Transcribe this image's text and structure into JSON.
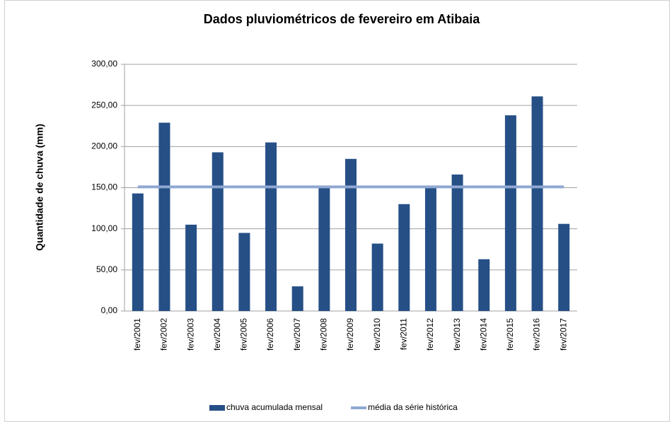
{
  "chart_data": {
    "type": "bar",
    "title": "Dados pluviométricos de fevereiro em Atibaia",
    "y_label": "Quantidade de chuva (mm)",
    "categories": [
      "fev/2001",
      "fev/2002",
      "fev/2003",
      "fev/2004",
      "fev/2005",
      "fev/2006",
      "fev/2007",
      "fev/2008",
      "fev/2009",
      "fev/2010",
      "fev/2011",
      "fev/2012",
      "fev/2013",
      "fev/2014",
      "fev/2015",
      "fev/2016",
      "fev/2017"
    ],
    "series": [
      {
        "name": "chuva acumulada mensal",
        "type": "bar",
        "color": "#264f86",
        "values": [
          143,
          229,
          105,
          193,
          95,
          205,
          30,
          150,
          185,
          82,
          130,
          151,
          166,
          63,
          238,
          261,
          106
        ]
      },
      {
        "name": "média da série histórica",
        "type": "line",
        "color": "#8fa8d2",
        "values": [
          151,
          151,
          151,
          151,
          151,
          151,
          151,
          151,
          151,
          151,
          151,
          151,
          151,
          151,
          151,
          151,
          151
        ]
      }
    ],
    "ylim": [
      0,
      300
    ],
    "yticks": [
      {
        "value": 0,
        "label": "0,00"
      },
      {
        "value": 50,
        "label": "50,00"
      },
      {
        "value": 100,
        "label": "100,00"
      },
      {
        "value": 150,
        "label": "150,00"
      },
      {
        "value": 200,
        "label": "200,00"
      },
      {
        "value": 250,
        "label": "250,00"
      },
      {
        "value": 300,
        "label": "300,00"
      }
    ],
    "grid": true,
    "legend": "bottom"
  }
}
